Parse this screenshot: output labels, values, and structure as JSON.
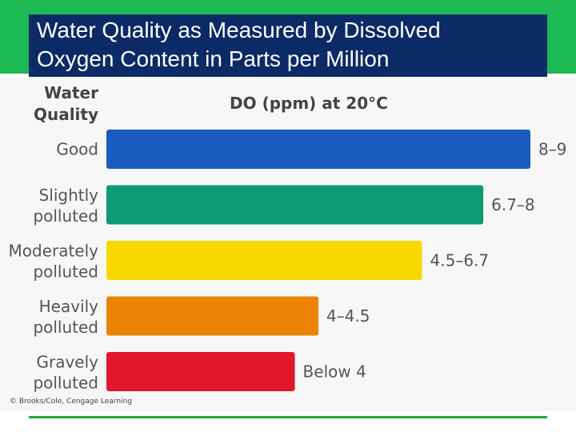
{
  "slide": {
    "title_line1": "Water Quality as Measured by Dissolved",
    "title_line2": "Oxygen Content in Parts per Million",
    "credit": "© Brooks/Cole, Cengage Learning"
  },
  "colors": {
    "accent_green": "#1db954",
    "title_background": "#0b2a66"
  },
  "chart_data": {
    "type": "bar",
    "orientation": "horizontal",
    "category_header_line1": "Water",
    "category_header_line2": "Quality",
    "value_header": "DO (ppm) at 20°C",
    "xlim": [
      0,
      9
    ],
    "bars": [
      {
        "label": [
          "Good"
        ],
        "range_label": "8–9",
        "low": 8,
        "high": 9,
        "color": "#1a5bbf"
      },
      {
        "label": [
          "Slightly",
          "polluted"
        ],
        "range_label": "6.7–8",
        "low": 6.7,
        "high": 8,
        "color": "#0e9a74"
      },
      {
        "label": [
          "Moderately",
          "polluted"
        ],
        "range_label": "4.5–6.7",
        "low": 4.5,
        "high": 6.7,
        "color": "#f9d800"
      },
      {
        "label": [
          "Heavily",
          "polluted"
        ],
        "range_label": "4–4.5",
        "low": 4,
        "high": 4.5,
        "color": "#ec8304"
      },
      {
        "label": [
          "Gravely",
          "polluted"
        ],
        "range_label": "Below 4",
        "low": 0,
        "high": 4,
        "color": "#e1182b"
      }
    ]
  }
}
